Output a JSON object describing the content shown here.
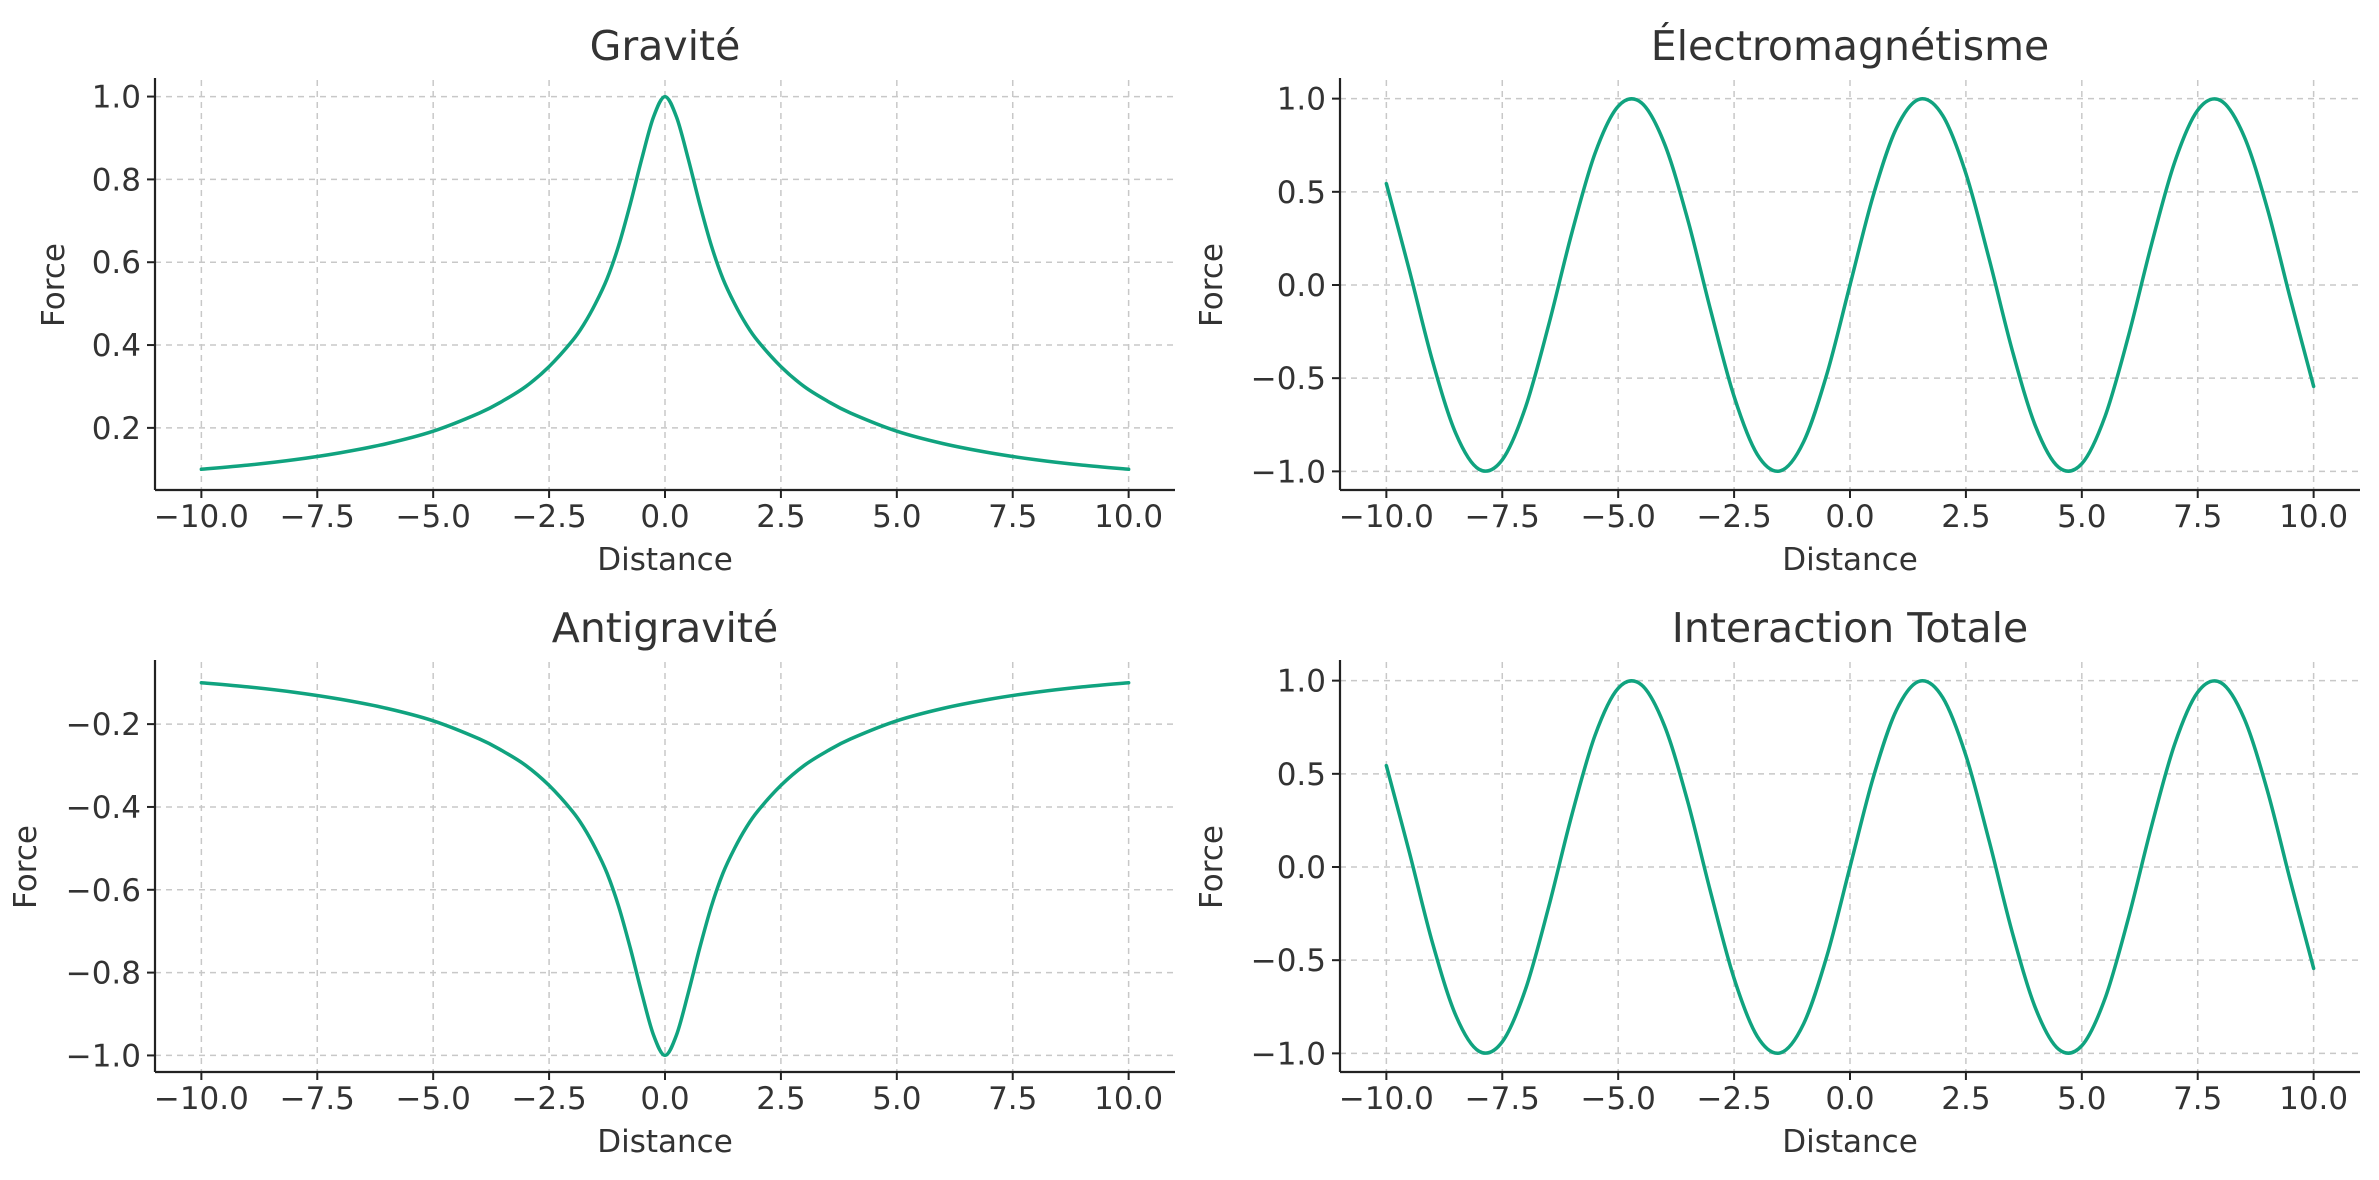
{
  "colors": {
    "line": "#10a37f",
    "text": "#333333",
    "grid": "#c8c8c8"
  },
  "chart_data": [
    {
      "type": "line",
      "title": "Gravité",
      "xlabel": "Distance",
      "ylabel": "Force",
      "xlim": [
        -11,
        11
      ],
      "ylim": [
        0.05,
        1.04
      ],
      "xticks": [
        -10,
        -7.5,
        -5,
        -2.5,
        0,
        2.5,
        5,
        7.5,
        10
      ],
      "xtick_labels": [
        "−10.0",
        "−7.5",
        "−5.0",
        "−2.5",
        "0.0",
        "2.5",
        "5.0",
        "7.5",
        "10.0"
      ],
      "yticks": [
        0.2,
        0.4,
        0.6,
        0.8,
        1.0
      ],
      "ytick_labels": [
        "0.2",
        "0.4",
        "0.6",
        "0.8",
        "1.0"
      ],
      "grid": true,
      "series": [
        {
          "x": [
            -10,
            -9,
            -8,
            -7,
            -6,
            -5,
            -4,
            -3.5,
            -3,
            -2.5,
            -2,
            -1.75,
            -1.5,
            -1.25,
            -1,
            -0.75,
            -0.5,
            -0.25,
            0,
            0.25,
            0.5,
            0.75,
            1,
            1.25,
            1.5,
            1.75,
            2,
            2.5,
            3,
            3.5,
            4,
            5,
            6,
            7,
            8,
            9,
            10
          ],
          "y": [
            0.1,
            0.11,
            0.123,
            0.14,
            0.162,
            0.192,
            0.236,
            0.265,
            0.3,
            0.348,
            0.41,
            0.45,
            0.5,
            0.56,
            0.64,
            0.74,
            0.85,
            0.95,
            1.0,
            0.95,
            0.85,
            0.74,
            0.64,
            0.56,
            0.5,
            0.45,
            0.41,
            0.348,
            0.3,
            0.265,
            0.236,
            0.192,
            0.162,
            0.14,
            0.123,
            0.11,
            0.1
          ]
        }
      ]
    },
    {
      "type": "line",
      "title": "Électromagnétisme",
      "xlabel": "Distance",
      "ylabel": "Force",
      "xlim": [
        -11,
        11
      ],
      "ylim": [
        -1.1,
        1.1
      ],
      "xticks": [
        -10,
        -7.5,
        -5,
        -2.5,
        0,
        2.5,
        5,
        7.5,
        10
      ],
      "xtick_labels": [
        "−10.0",
        "−7.5",
        "−5.0",
        "−2.5",
        "0.0",
        "2.5",
        "5.0",
        "7.5",
        "10.0"
      ],
      "yticks": [
        -1,
        -0.5,
        0,
        0.5,
        1
      ],
      "ytick_labels": [
        "−1.0",
        "−0.5",
        "0.0",
        "0.5",
        "1.0"
      ],
      "grid": true,
      "series": [
        {
          "x": [
            -10,
            -9.5,
            -9,
            -8.5,
            -8,
            -7.5,
            -7,
            -6.5,
            -6,
            -5.5,
            -5,
            -4.5,
            -4,
            -3.5,
            -3,
            -2.5,
            -2,
            -1.5,
            -1,
            -0.5,
            0,
            0.5,
            1,
            1.5,
            2,
            2.5,
            3,
            3.5,
            4,
            4.5,
            5,
            5.5,
            6,
            6.5,
            7,
            7.5,
            8,
            8.5,
            9,
            9.5,
            10
          ],
          "y": [
            0.544,
            0.075,
            -0.412,
            -0.798,
            -0.989,
            -0.938,
            -0.657,
            -0.215,
            0.279,
            0.706,
            0.959,
            0.978,
            0.757,
            0.351,
            -0.141,
            -0.598,
            -0.909,
            -0.997,
            -0.841,
            -0.479,
            0.0,
            0.479,
            0.841,
            0.997,
            0.909,
            0.598,
            0.141,
            -0.351,
            -0.757,
            -0.978,
            -0.959,
            -0.706,
            -0.279,
            0.215,
            0.657,
            0.938,
            0.989,
            0.798,
            0.412,
            -0.075,
            -0.544
          ]
        }
      ]
    },
    {
      "type": "line",
      "title": "Antigravité",
      "xlabel": "Distance",
      "ylabel": "Force",
      "xlim": [
        -11,
        11
      ],
      "ylim": [
        -1.04,
        -0.05
      ],
      "xticks": [
        -10,
        -7.5,
        -5,
        -2.5,
        0,
        2.5,
        5,
        7.5,
        10
      ],
      "xtick_labels": [
        "−10.0",
        "−7.5",
        "−5.0",
        "−2.5",
        "0.0",
        "2.5",
        "5.0",
        "7.5",
        "10.0"
      ],
      "yticks": [
        -1.0,
        -0.8,
        -0.6,
        -0.4,
        -0.2
      ],
      "ytick_labels": [
        "−1.0",
        "−0.8",
        "−0.6",
        "−0.4",
        "−0.2"
      ],
      "grid": true,
      "series": [
        {
          "x": [
            -10,
            -9,
            -8,
            -7,
            -6,
            -5,
            -4,
            -3.5,
            -3,
            -2.5,
            -2,
            -1.75,
            -1.5,
            -1.25,
            -1,
            -0.75,
            -0.5,
            -0.25,
            0,
            0.25,
            0.5,
            0.75,
            1,
            1.25,
            1.5,
            1.75,
            2,
            2.5,
            3,
            3.5,
            4,
            5,
            6,
            7,
            8,
            9,
            10
          ],
          "y": [
            -0.1,
            -0.11,
            -0.123,
            -0.14,
            -0.162,
            -0.192,
            -0.236,
            -0.265,
            -0.3,
            -0.348,
            -0.41,
            -0.45,
            -0.5,
            -0.56,
            -0.64,
            -0.74,
            -0.85,
            -0.95,
            -1.0,
            -0.95,
            -0.85,
            -0.74,
            -0.64,
            -0.56,
            -0.5,
            -0.45,
            -0.41,
            -0.348,
            -0.3,
            -0.265,
            -0.236,
            -0.192,
            -0.162,
            -0.14,
            -0.123,
            -0.11,
            -0.1
          ]
        }
      ]
    },
    {
      "type": "line",
      "title": "Interaction Totale",
      "xlabel": "Distance",
      "ylabel": "Force",
      "xlim": [
        -11,
        11
      ],
      "ylim": [
        -1.1,
        1.1
      ],
      "xticks": [
        -10,
        -7.5,
        -5,
        -2.5,
        0,
        2.5,
        5,
        7.5,
        10
      ],
      "xtick_labels": [
        "−10.0",
        "−7.5",
        "−5.0",
        "−2.5",
        "0.0",
        "2.5",
        "5.0",
        "7.5",
        "10.0"
      ],
      "yticks": [
        -1,
        -0.5,
        0,
        0.5,
        1
      ],
      "ytick_labels": [
        "−1.0",
        "−0.5",
        "0.0",
        "0.5",
        "1.0"
      ],
      "grid": true,
      "series": [
        {
          "x": [
            -10,
            -9.5,
            -9,
            -8.5,
            -8,
            -7.5,
            -7,
            -6.5,
            -6,
            -5.5,
            -5,
            -4.5,
            -4,
            -3.5,
            -3,
            -2.5,
            -2,
            -1.5,
            -1,
            -0.5,
            0,
            0.5,
            1,
            1.5,
            2,
            2.5,
            3,
            3.5,
            4,
            4.5,
            5,
            5.5,
            6,
            6.5,
            7,
            7.5,
            8,
            8.5,
            9,
            9.5,
            10
          ],
          "y": [
            0.544,
            0.075,
            -0.412,
            -0.798,
            -0.989,
            -0.938,
            -0.657,
            -0.215,
            0.279,
            0.706,
            0.959,
            0.978,
            0.757,
            0.351,
            -0.141,
            -0.598,
            -0.909,
            -0.997,
            -0.841,
            -0.479,
            0.0,
            0.479,
            0.841,
            0.997,
            0.909,
            0.598,
            0.141,
            -0.351,
            -0.757,
            -0.978,
            -0.959,
            -0.706,
            -0.279,
            0.215,
            0.657,
            0.938,
            0.989,
            0.798,
            0.412,
            -0.075,
            -0.544
          ]
        }
      ]
    }
  ]
}
